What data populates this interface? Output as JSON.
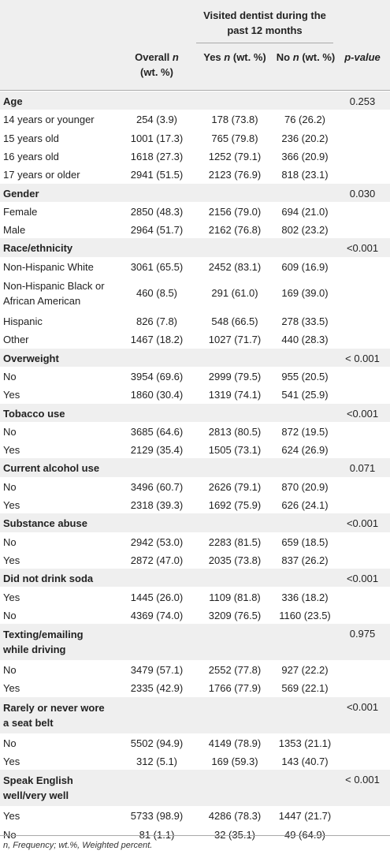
{
  "header": {
    "group_line1": "Visited dentist during the",
    "group_line2": "past 12 months",
    "overall_n": "n",
    "overall_tail": "(wt. %)",
    "overall_prefix": "Overall",
    "yes_prefix": "Yes",
    "yes_n": "n",
    "yes_tail": "(wt. %)",
    "no_prefix": "No",
    "no_n": "n",
    "no_tail": "(wt. %)",
    "pvalue": "p-value"
  },
  "rows": [
    {
      "type": "section",
      "label": "Age",
      "p": "0.253"
    },
    {
      "type": "data",
      "label": "14 years or younger",
      "overall": "254 (3.9)",
      "yes": "178 (73.8)",
      "no": "76 (26.2)"
    },
    {
      "type": "data",
      "label": "15 years old",
      "overall": "1001 (17.3)",
      "yes": "765 (79.8)",
      "no": "236 (20.2)"
    },
    {
      "type": "data",
      "label": "16 years old",
      "overall": "1618 (27.3)",
      "yes": "1252 (79.1)",
      "no": "366 (20.9)"
    },
    {
      "type": "data",
      "label": "17 years or older",
      "overall": "2941 (51.5)",
      "yes": "2123 (76.9)",
      "no": "818 (23.1)"
    },
    {
      "type": "section",
      "label": "Gender",
      "p": "0.030"
    },
    {
      "type": "data",
      "label": "Female",
      "overall": "2850 (48.3)",
      "yes": "2156 (79.0)",
      "no": "694 (21.0)"
    },
    {
      "type": "data",
      "label": "Male",
      "overall": "2964 (51.7)",
      "yes": "2162 (76.8)",
      "no": "802 (23.2)"
    },
    {
      "type": "section",
      "label": "Race/ethnicity",
      "p": "<0.001"
    },
    {
      "type": "data",
      "label": "Non-Hispanic White",
      "overall": "3061 (65.5)",
      "yes": "2452 (83.1)",
      "no": "609 (16.9)"
    },
    {
      "type": "data",
      "label": [
        "Non-Hispanic Black or",
        "African American"
      ],
      "overall": "460 (8.5)",
      "yes": "291 (61.0)",
      "no": "169 (39.0)"
    },
    {
      "type": "data",
      "label": "Hispanic",
      "overall": "826 (7.8)",
      "yes": "548 (66.5)",
      "no": "278 (33.5)"
    },
    {
      "type": "data",
      "label": "Other",
      "overall": "1467 (18.2)",
      "yes": "1027 (71.7)",
      "no": "440 (28.3)"
    },
    {
      "type": "section",
      "label": "Overweight",
      "p": "< 0.001"
    },
    {
      "type": "data",
      "label": "No",
      "overall": "3954 (69.6)",
      "yes": "2999 (79.5)",
      "no": "955 (20.5)"
    },
    {
      "type": "data",
      "label": "Yes",
      "overall": "1860 (30.4)",
      "yes": "1319 (74.1)",
      "no": "541 (25.9)"
    },
    {
      "type": "section",
      "label": "Tobacco use",
      "p": "<0.001"
    },
    {
      "type": "data",
      "label": "No",
      "overall": "3685 (64.6)",
      "yes": "2813 (80.5)",
      "no": "872 (19.5)"
    },
    {
      "type": "data",
      "label": "Yes",
      "overall": "2129 (35.4)",
      "yes": "1505 (73.1)",
      "no": "624 (26.9)"
    },
    {
      "type": "section",
      "label": "Current alcohol use",
      "p": "0.071"
    },
    {
      "type": "data",
      "label": "No",
      "overall": "3496 (60.7)",
      "yes": "2626 (79.1)",
      "no": "870 (20.9)"
    },
    {
      "type": "data",
      "label": "Yes",
      "overall": "2318 (39.3)",
      "yes": "1692 (75.9)",
      "no": "626 (24.1)"
    },
    {
      "type": "section",
      "label": "Substance abuse",
      "p": "<0.001"
    },
    {
      "type": "data",
      "label": "No",
      "overall": "2942 (53.0)",
      "yes": "2283 (81.5)",
      "no": "659 (18.5)"
    },
    {
      "type": "data",
      "label": "Yes",
      "overall": "2872 (47.0)",
      "yes": "2035 (73.8)",
      "no": "837 (26.2)"
    },
    {
      "type": "section",
      "label": "Did not drink soda",
      "p": "<0.001"
    },
    {
      "type": "data",
      "label": "Yes",
      "overall": "1445 (26.0)",
      "yes": "1109 (81.8)",
      "no": "336 (18.2)"
    },
    {
      "type": "data",
      "label": "No",
      "overall": "4369 (74.0)",
      "yes": "3209 (76.5)",
      "no": "1160 (23.5)"
    },
    {
      "type": "section",
      "label": [
        "Texting/emailing",
        "while driving"
      ],
      "p": "0.975"
    },
    {
      "type": "data",
      "label": "No",
      "overall": "3479 (57.1)",
      "yes": "2552 (77.8)",
      "no": "927 (22.2)"
    },
    {
      "type": "data",
      "label": "Yes",
      "overall": "2335 (42.9)",
      "yes": "1766 (77.9)",
      "no": "569 (22.1)"
    },
    {
      "type": "section",
      "label": [
        "Rarely or never wore",
        "a seat belt"
      ],
      "p": "<0.001"
    },
    {
      "type": "data",
      "label": "No",
      "overall": "5502 (94.9)",
      "yes": "4149 (78.9)",
      "no": "1353 (21.1)"
    },
    {
      "type": "data",
      "label": "Yes",
      "overall": "312 (5.1)",
      "yes": "169 (59.3)",
      "no": "143 (40.7)"
    },
    {
      "type": "section",
      "label": [
        "Speak English",
        "well/very well"
      ],
      "p": "< 0.001"
    },
    {
      "type": "data",
      "label": "Yes",
      "overall": "5733 (98.9)",
      "yes": "4286 (78.3)",
      "no": "1447 (21.7)"
    },
    {
      "type": "data",
      "label": "No",
      "overall": "81 (1.1)",
      "yes": "32 (35.1)",
      "no": "49 (64.9)"
    }
  ],
  "footnote": "n, Frequency; wt.%, Weighted percent."
}
